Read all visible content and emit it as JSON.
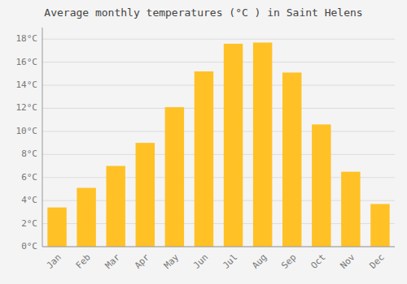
{
  "chart_data": {
    "type": "bar",
    "title": "Average monthly temperatures (°C ) in Saint Helens",
    "categories": [
      "Jan",
      "Feb",
      "Mar",
      "Apr",
      "May",
      "Jun",
      "Jul",
      "Aug",
      "Sep",
      "Oct",
      "Nov",
      "Dec"
    ],
    "values": [
      3.4,
      5.1,
      7.0,
      9.0,
      12.1,
      15.2,
      17.6,
      17.7,
      15.1,
      10.6,
      6.5,
      3.7
    ],
    "color": "#FFC125",
    "ylim": [
      0,
      19
    ],
    "yticks": [
      {
        "value": 0,
        "label": "0°C"
      },
      {
        "value": 2,
        "label": "2°C"
      },
      {
        "value": 4,
        "label": "4°C"
      },
      {
        "value": 6,
        "label": "6°C"
      },
      {
        "value": 8,
        "label": "8°C"
      },
      {
        "value": 10,
        "label": "10°C"
      },
      {
        "value": 12,
        "label": "12°C"
      },
      {
        "value": 14,
        "label": "14°C"
      },
      {
        "value": 16,
        "label": "16°C"
      },
      {
        "value": 18,
        "label": "18°C"
      }
    ],
    "grid": true
  }
}
